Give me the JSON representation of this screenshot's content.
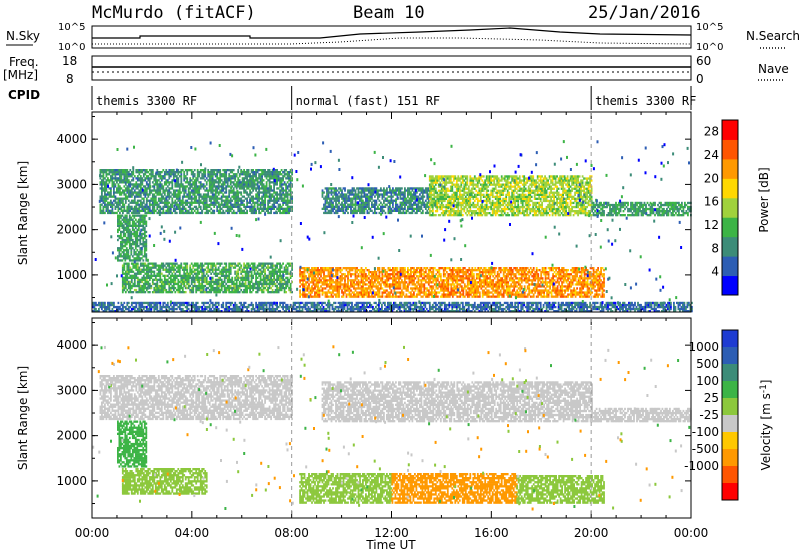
{
  "header": {
    "station": "McMurdo (fitACF)",
    "beam": "Beam 10",
    "date": "25/Jan/2016"
  },
  "aux_panels": {
    "nsky_label": "N.Sky",
    "nsearch_label": "N.Search",
    "nsky_ticks": [
      "10^5",
      "10^0"
    ],
    "nsearch_ticks": [
      "10^5",
      "10^0"
    ],
    "freq_label": "Freq.",
    "freq_unit": "[MHz]",
    "freq_ticks": [
      "18",
      "8"
    ],
    "nave_label": "Nave",
    "nave_ticks": [
      "60",
      "0"
    ],
    "cpid_label": "CPID",
    "cpid_segments": [
      {
        "label": "themis 3300 RF",
        "start": 0,
        "end": 8
      },
      {
        "label": "normal (fast) 151 RF",
        "start": 8,
        "end": 20
      },
      {
        "label": "themis 3300 RF",
        "start": 20,
        "end": 24
      }
    ]
  },
  "legend_colors": {
    "power": [
      "#0000ff",
      "#2d5eb4",
      "#3c8c78",
      "#3cb446",
      "#a0d23c",
      "#ffd800",
      "#ff9900",
      "#ff5500",
      "#ff0000"
    ],
    "velocity": [
      "#ff0000",
      "#ff5500",
      "#ff9900",
      "#ffc800",
      "#c8c8c8",
      "#8cc83c",
      "#3cb446",
      "#3c8c78",
      "#2d5eb4",
      "#1e3cd2"
    ]
  },
  "chart_data": [
    {
      "type": "heatmap",
      "panel": "power",
      "ylabel": "Slant Range [km]",
      "xlabel": "Time UT",
      "xlim": [
        0,
        24
      ],
      "ylim": [
        180,
        4600
      ],
      "yticks": [
        "1000",
        "2000",
        "3000",
        "4000"
      ],
      "xticks": [
        "00:00",
        "04:00",
        "08:00",
        "12:00",
        "16:00",
        "20:00",
        "00:00"
      ],
      "colorbar": {
        "label": "Power [dB]",
        "ticks": [
          "4",
          "8",
          "12",
          "16",
          "20",
          "24",
          "28"
        ],
        "range": [
          0,
          30
        ]
      },
      "regions": [
        {
          "t0": 0.3,
          "t1": 8.0,
          "r0": 2350,
          "r1": 3300,
          "level": 9
        },
        {
          "t0": 9.2,
          "t1": 13.5,
          "r0": 2350,
          "r1": 2900,
          "level": 8
        },
        {
          "t0": 13.5,
          "t1": 20.0,
          "r0": 2300,
          "r1": 3200,
          "level": 15
        },
        {
          "t0": 20.0,
          "t1": 24.0,
          "r0": 2300,
          "r1": 2600,
          "level": 10
        },
        {
          "t0": 1.2,
          "t1": 8.0,
          "r0": 600,
          "r1": 1250,
          "level": 11
        },
        {
          "t0": 8.3,
          "t1": 20.5,
          "r0": 500,
          "r1": 1150,
          "level": 22
        },
        {
          "t0": 1.0,
          "t1": 2.2,
          "r0": 1300,
          "r1": 2300,
          "level": 10
        },
        {
          "t0": 0.0,
          "t1": 24.0,
          "r0": 180,
          "r1": 380,
          "level": 6
        }
      ]
    },
    {
      "type": "heatmap",
      "panel": "velocity",
      "ylabel": "Slant Range [km]",
      "xlabel": "Time UT",
      "xlim": [
        0,
        24
      ],
      "ylim": [
        180,
        4600
      ],
      "yticks": [
        "1000",
        "2000",
        "3000",
        "4000"
      ],
      "xticks": [
        "00:00",
        "04:00",
        "08:00",
        "12:00",
        "16:00",
        "20:00",
        "00:00"
      ],
      "colorbar": {
        "label": "Velocity [m s^-1]",
        "ticks": [
          "1000",
          "500",
          "100",
          "25",
          "-25",
          "-100",
          "-500",
          "-1000"
        ]
      },
      "regions": [
        {
          "t0": 0.3,
          "t1": 8.0,
          "r0": 2350,
          "r1": 3300,
          "level": 0
        },
        {
          "t0": 9.2,
          "t1": 20.0,
          "r0": 2300,
          "r1": 3200,
          "level": 0
        },
        {
          "t0": 20.0,
          "t1": 24.0,
          "r0": 2300,
          "r1": 2600,
          "level": 0
        },
        {
          "t0": 1.2,
          "t1": 4.6,
          "r0": 700,
          "r1": 1250,
          "level": 80
        },
        {
          "t0": 8.3,
          "t1": 12.0,
          "r0": 500,
          "r1": 1150,
          "level": 80
        },
        {
          "t0": 12.0,
          "t1": 17.0,
          "r0": 500,
          "r1": 1150,
          "level": -150
        },
        {
          "t0": 17.0,
          "t1": 20.5,
          "r0": 500,
          "r1": 1100,
          "level": 60
        },
        {
          "t0": 1.0,
          "t1": 2.2,
          "r0": 1300,
          "r1": 2300,
          "level": 300
        }
      ]
    }
  ]
}
